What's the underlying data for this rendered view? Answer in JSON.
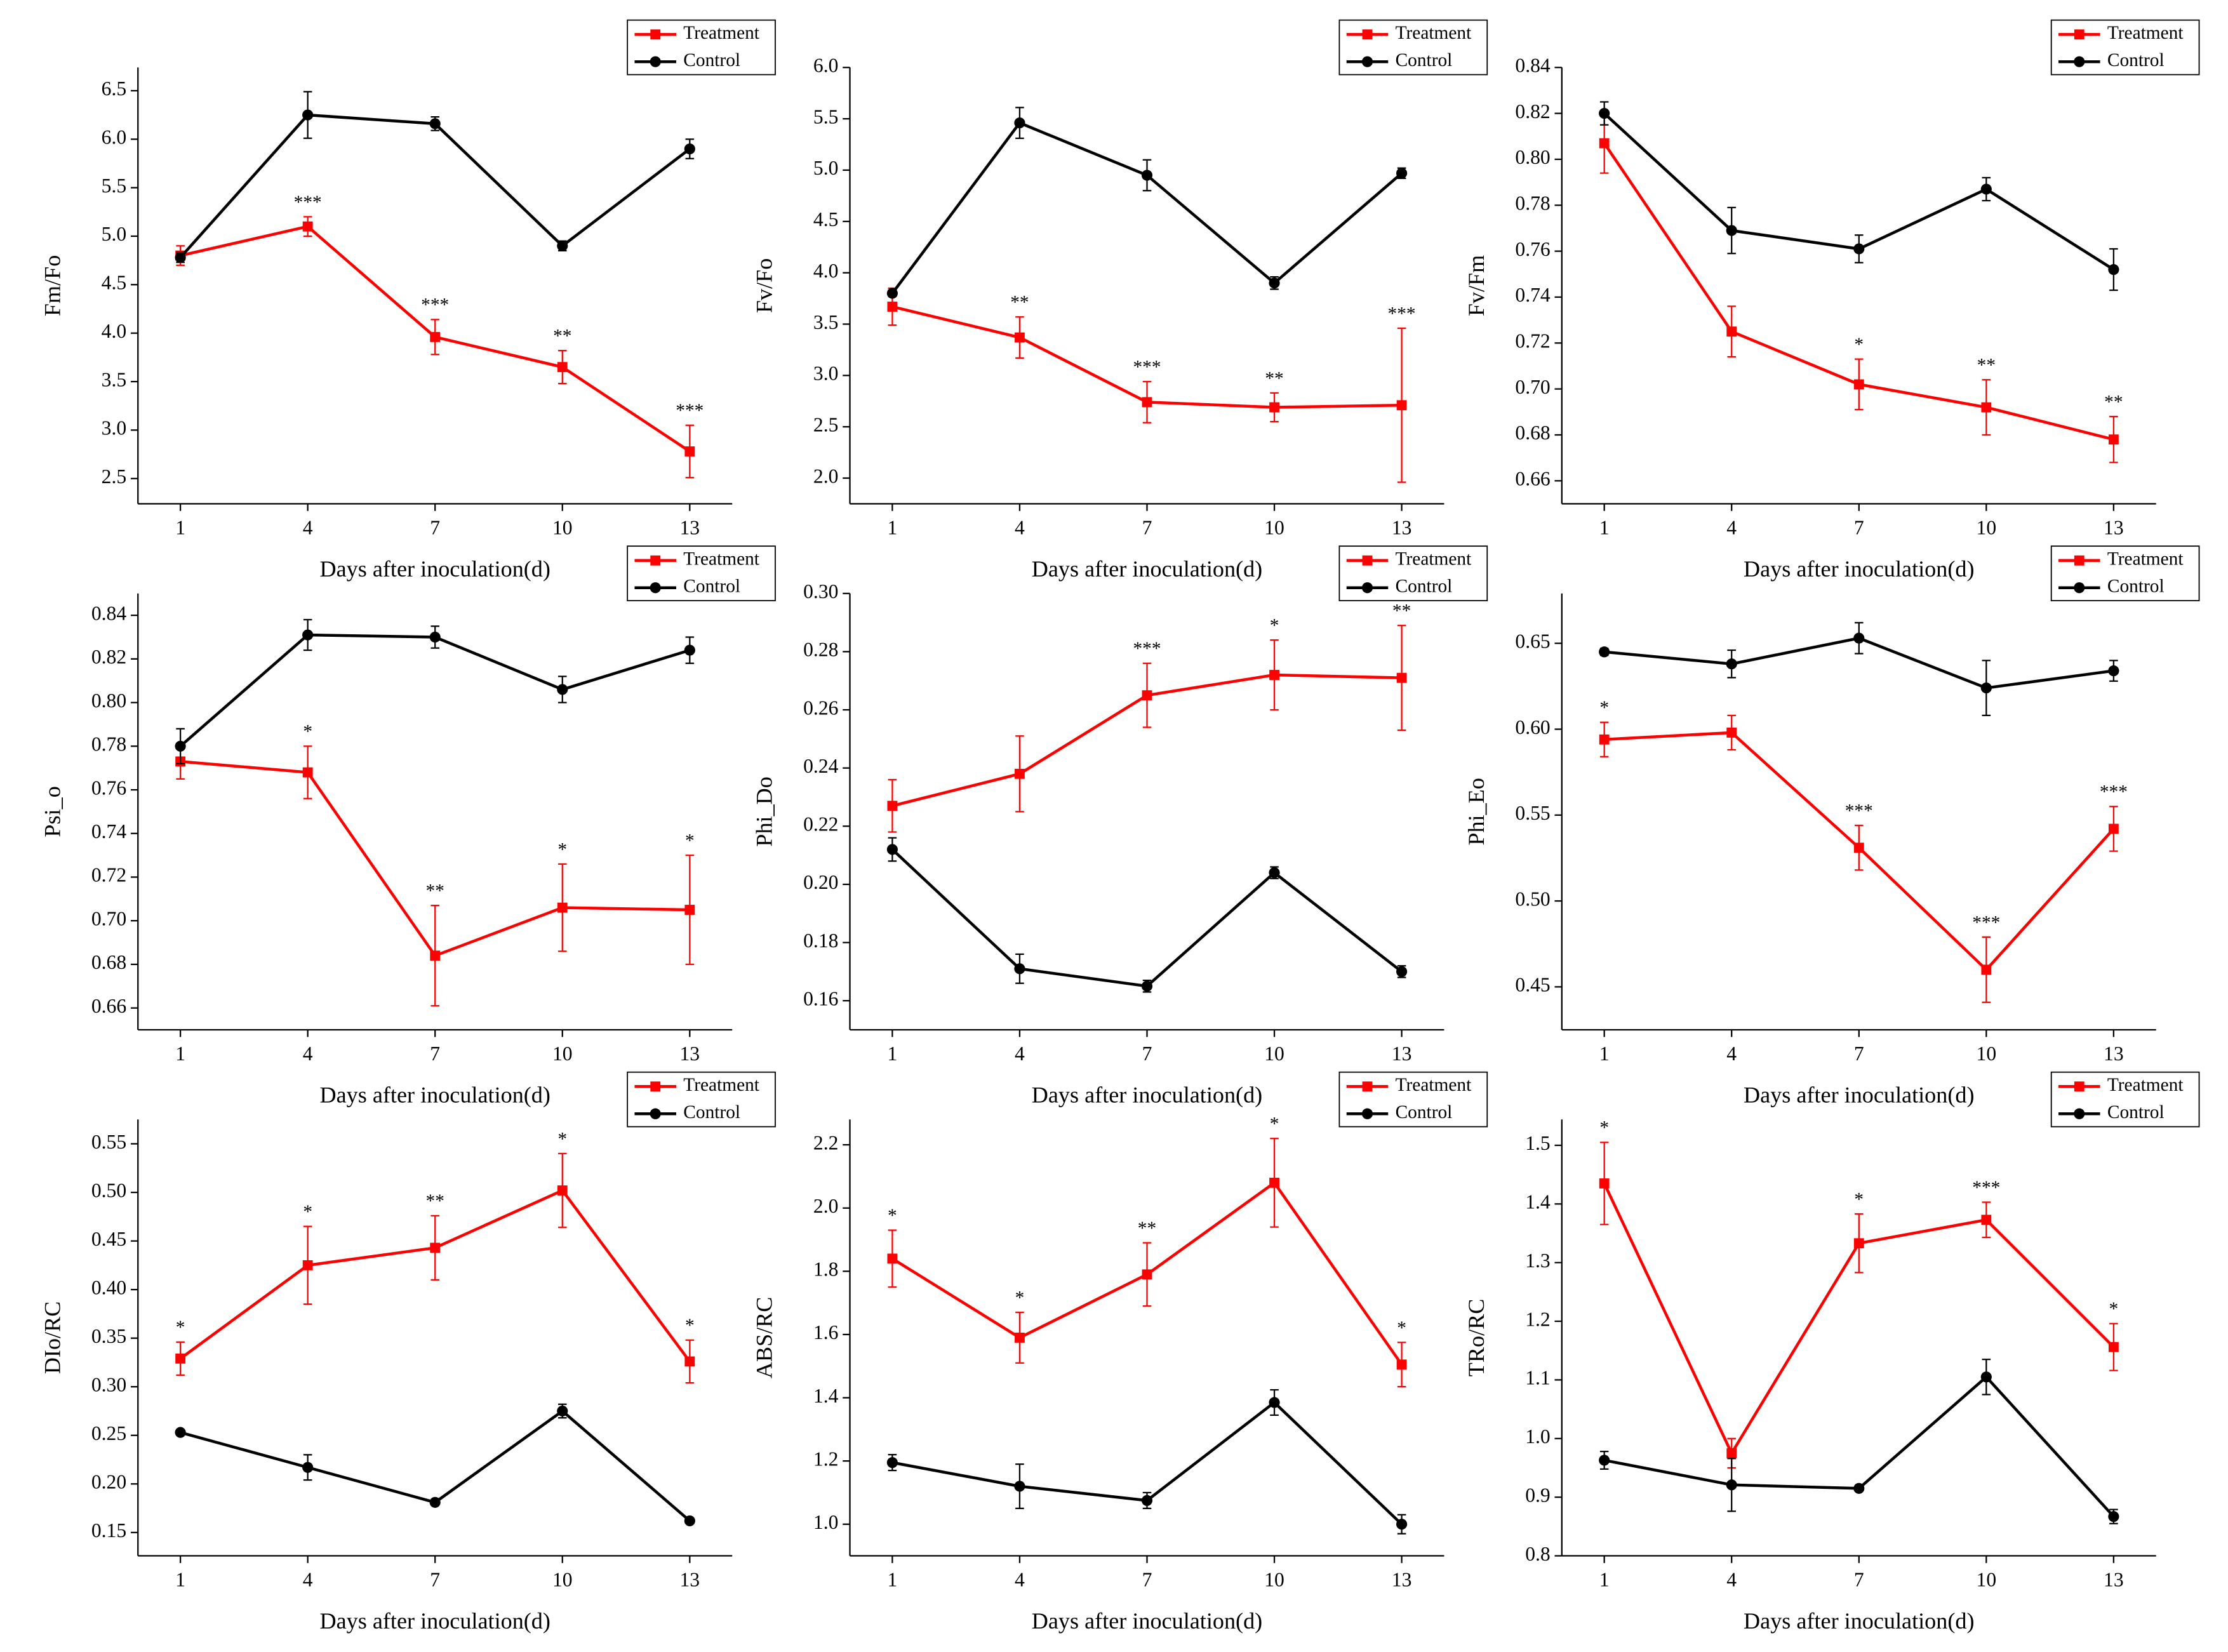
{
  "chart_data": [
    {
      "type": "line",
      "xlabel": "Days after inoculation(d)",
      "ylabel": "Fm/Fo",
      "x": [
        1,
        4,
        7,
        10,
        13
      ],
      "xlim": [
        0,
        14
      ],
      "xticks": [
        1,
        4,
        7,
        10,
        13
      ],
      "ylim": [
        2.24,
        6.74
      ],
      "yticks": [
        2.5,
        {
          "value": 3,
          "label": "3.0"
        },
        3.5,
        {
          "value": 4,
          "label": "4.0"
        },
        4.5,
        {
          "value": 5,
          "label": "5.0"
        },
        5.5,
        {
          "value": 6,
          "label": "6.0"
        },
        6.5
      ],
      "series": [
        {
          "name": "Treatment",
          "color": "#ff0000",
          "marker": "square",
          "values": [
            4.8,
            5.1,
            3.96,
            3.65,
            2.78
          ],
          "errors": [
            0.1,
            0.1,
            0.18,
            0.17,
            0.27
          ]
        },
        {
          "name": "Control",
          "color": "#000000",
          "marker": "circle",
          "values": [
            4.78,
            6.25,
            6.16,
            4.9,
            5.9
          ],
          "errors": [
            0.05,
            0.24,
            0.07,
            0.05,
            0.1
          ]
        }
      ],
      "significance": [
        null,
        "***",
        "***",
        "**",
        "***"
      ]
    },
    {
      "type": "line",
      "xlabel": "Days after inoculation(d)",
      "ylabel": "Fv/Fo",
      "x": [
        1,
        4,
        7,
        10,
        13
      ],
      "xlim": [
        0,
        14
      ],
      "xticks": [
        1,
        4,
        7,
        10,
        13
      ],
      "ylim": [
        1.75,
        6.0
      ],
      "yticks": [
        {
          "value": 2,
          "label": "2.0"
        },
        2.5,
        {
          "value": 3,
          "label": "3.0"
        },
        3.5,
        {
          "value": 4,
          "label": "4.0"
        },
        4.5,
        {
          "value": 5,
          "label": "5.0"
        },
        5.5,
        {
          "value": 6,
          "label": "6.0"
        }
      ],
      "series": [
        {
          "name": "Treatment",
          "color": "#ff0000",
          "marker": "square",
          "values": [
            3.67,
            3.37,
            2.74,
            2.69,
            2.71
          ],
          "errors": [
            0.18,
            0.2,
            0.2,
            0.14,
            0.75
          ]
        },
        {
          "name": "Control",
          "color": "#000000",
          "marker": "circle",
          "values": [
            3.8,
            5.46,
            4.95,
            3.9,
            4.97
          ],
          "errors": [
            0.03,
            0.15,
            0.15,
            0.06,
            0.05
          ]
        }
      ],
      "significance": [
        null,
        "**",
        "***",
        "**",
        "***"
      ]
    },
    {
      "type": "line",
      "xlabel": "Days after inoculation(d)",
      "ylabel": "Fv/Fm",
      "x": [
        1,
        4,
        7,
        10,
        13
      ],
      "xlim": [
        0,
        14
      ],
      "xticks": [
        1,
        4,
        7,
        10,
        13
      ],
      "ylim": [
        0.65,
        0.84
      ],
      "yticks": [
        0.66,
        0.68,
        {
          "value": 0.7,
          "label": "0.70"
        },
        0.72,
        0.74,
        0.76,
        0.78,
        {
          "value": 0.8,
          "label": "0.80"
        },
        0.82,
        0.84
      ],
      "series": [
        {
          "name": "Treatment",
          "color": "#ff0000",
          "marker": "square",
          "values": [
            0.807,
            0.725,
            0.702,
            0.692,
            0.678
          ],
          "errors": [
            0.013,
            0.011,
            0.011,
            0.012,
            0.01
          ]
        },
        {
          "name": "Control",
          "color": "#000000",
          "marker": "circle",
          "values": [
            0.82,
            0.769,
            0.761,
            0.787,
            0.752
          ],
          "errors": [
            0.005,
            0.01,
            0.006,
            0.005,
            0.009
          ]
        }
      ],
      "significance": [
        null,
        null,
        "*",
        "**",
        "**"
      ]
    },
    {
      "type": "line",
      "xlabel": "Days after inoculation(d)",
      "ylabel": "Psi_o",
      "x": [
        1,
        4,
        7,
        10,
        13
      ],
      "xlim": [
        0,
        14
      ],
      "xticks": [
        1,
        4,
        7,
        10,
        13
      ],
      "ylim": [
        0.65,
        0.85
      ],
      "yticks": [
        0.66,
        0.68,
        {
          "value": 0.7,
          "label": "0.70"
        },
        0.72,
        0.74,
        0.76,
        0.78,
        {
          "value": 0.8,
          "label": "0.80"
        },
        0.82,
        0.84
      ],
      "series": [
        {
          "name": "Treatment",
          "color": "#ff0000",
          "marker": "square",
          "values": [
            0.773,
            0.768,
            0.684,
            0.706,
            0.705
          ],
          "errors": [
            0.008,
            0.012,
            0.023,
            0.02,
            0.025
          ]
        },
        {
          "name": "Control",
          "color": "#000000",
          "marker": "circle",
          "values": [
            0.78,
            0.831,
            0.83,
            0.806,
            0.824
          ],
          "errors": [
            0.008,
            0.007,
            0.005,
            0.006,
            0.006
          ]
        }
      ],
      "significance": [
        null,
        "*",
        "**",
        "*",
        "*"
      ]
    },
    {
      "type": "line",
      "xlabel": "Days after inoculation(d)",
      "ylabel": "Phi_Do",
      "x": [
        1,
        4,
        7,
        10,
        13
      ],
      "xlim": [
        0,
        14
      ],
      "xticks": [
        1,
        4,
        7,
        10,
        13
      ],
      "ylim": [
        0.15,
        0.3
      ],
      "yticks": [
        0.16,
        0.18,
        {
          "value": 0.2,
          "label": "0.20"
        },
        0.22,
        0.24,
        0.26,
        0.28,
        {
          "value": 0.3,
          "label": "0.30"
        }
      ],
      "series": [
        {
          "name": "Treatment",
          "color": "#ff0000",
          "marker": "square",
          "values": [
            0.227,
            0.238,
            0.265,
            0.272,
            0.271
          ],
          "errors": [
            0.009,
            0.013,
            0.011,
            0.012,
            0.018
          ]
        },
        {
          "name": "Control",
          "color": "#000000",
          "marker": "circle",
          "values": [
            0.212,
            0.171,
            0.165,
            0.204,
            0.17
          ],
          "errors": [
            0.004,
            0.005,
            0.002,
            0.002,
            0.002
          ]
        }
      ],
      "significance": [
        null,
        null,
        "***",
        "*",
        "**"
      ]
    },
    {
      "type": "line",
      "xlabel": "Days after inoculation(d)",
      "ylabel": "Phi_Eo",
      "x": [
        1,
        4,
        7,
        10,
        13
      ],
      "xlim": [
        0,
        14
      ],
      "xticks": [
        1,
        4,
        7,
        10,
        13
      ],
      "ylim": [
        0.425,
        0.679
      ],
      "yticks": [
        0.45,
        {
          "value": 0.5,
          "label": "0.50"
        },
        0.55,
        {
          "value": 0.6,
          "label": "0.60"
        },
        0.65
      ],
      "series": [
        {
          "name": "Treatment",
          "color": "#ff0000",
          "marker": "square",
          "values": [
            0.594,
            0.598,
            0.531,
            0.46,
            0.542
          ],
          "errors": [
            0.01,
            0.01,
            0.013,
            0.019,
            0.013
          ]
        },
        {
          "name": "Control",
          "color": "#000000",
          "marker": "circle",
          "values": [
            0.645,
            0.638,
            0.653,
            0.624,
            0.634
          ],
          "errors": [
            0.002,
            0.008,
            0.009,
            0.016,
            0.006
          ]
        }
      ],
      "significance": [
        "*",
        null,
        "***",
        "***",
        "***"
      ]
    },
    {
      "type": "line",
      "xlabel": "Days after inoculation(d)",
      "ylabel": "DIo/RC",
      "x": [
        1,
        4,
        7,
        10,
        13
      ],
      "xlim": [
        0,
        14
      ],
      "xticks": [
        1,
        4,
        7,
        10,
        13
      ],
      "ylim": [
        0.126,
        0.575
      ],
      "yticks": [
        0.15,
        {
          "value": 0.2,
          "label": "0.20"
        },
        0.25,
        {
          "value": 0.3,
          "label": "0.30"
        },
        0.35,
        {
          "value": 0.4,
          "label": "0.40"
        },
        0.45,
        {
          "value": 0.5,
          "label": "0.50"
        },
        0.55
      ],
      "series": [
        {
          "name": "Treatment",
          "color": "#ff0000",
          "marker": "square",
          "values": [
            0.329,
            0.425,
            0.443,
            0.502,
            0.326
          ],
          "errors": [
            0.017,
            0.04,
            0.033,
            0.038,
            0.022
          ]
        },
        {
          "name": "Control",
          "color": "#000000",
          "marker": "circle",
          "values": [
            0.253,
            0.217,
            0.181,
            0.275,
            0.162
          ],
          "errors": [
            0.002,
            0.013,
            0.003,
            0.007,
            0.002
          ]
        }
      ],
      "significance": [
        "*",
        "*",
        "**",
        "*",
        "*"
      ]
    },
    {
      "type": "line",
      "xlabel": "Days after inoculation(d)",
      "ylabel": "ABS/RC",
      "x": [
        1,
        4,
        7,
        10,
        13
      ],
      "xlim": [
        0,
        14
      ],
      "xticks": [
        1,
        4,
        7,
        10,
        13
      ],
      "ylim": [
        0.9,
        2.28
      ],
      "yticks": [
        {
          "value": 1,
          "label": "1.0"
        },
        1.2,
        1.4,
        1.6,
        1.8,
        {
          "value": 2,
          "label": "2.0"
        },
        2.2
      ],
      "series": [
        {
          "name": "Treatment",
          "color": "#ff0000",
          "marker": "square",
          "values": [
            1.84,
            1.59,
            1.79,
            2.08,
            1.505
          ],
          "errors": [
            0.09,
            0.08,
            0.1,
            0.14,
            0.07
          ]
        },
        {
          "name": "Control",
          "color": "#000000",
          "marker": "circle",
          "values": [
            1.195,
            1.12,
            1.075,
            1.385,
            1.0
          ],
          "errors": [
            0.025,
            0.07,
            0.025,
            0.04,
            0.03
          ]
        }
      ],
      "significance": [
        "*",
        "*",
        "**",
        "*",
        "*"
      ]
    },
    {
      "type": "line",
      "xlabel": "Days after inoculation(d)",
      "ylabel": "TRo/RC",
      "x": [
        1,
        4,
        7,
        10,
        13
      ],
      "xlim": [
        0,
        14
      ],
      "xticks": [
        1,
        4,
        7,
        10,
        13
      ],
      "ylim": [
        0.8,
        1.544
      ],
      "yticks": [
        0.8,
        0.9,
        {
          "value": 1,
          "label": "1.0"
        },
        1.1,
        1.2,
        1.3,
        1.4,
        1.5
      ],
      "series": [
        {
          "name": "Treatment",
          "color": "#ff0000",
          "marker": "square",
          "values": [
            1.435,
            0.975,
            1.333,
            1.373,
            1.156
          ],
          "errors": [
            0.07,
            0.025,
            0.05,
            0.03,
            0.04
          ]
        },
        {
          "name": "Control",
          "color": "#000000",
          "marker": "circle",
          "values": [
            0.963,
            0.921,
            0.915,
            1.105,
            0.867
          ],
          "errors": [
            0.015,
            0.045,
            0.005,
            0.03,
            0.012
          ]
        }
      ],
      "significance": [
        "*",
        null,
        "*",
        "***",
        "*"
      ]
    }
  ]
}
